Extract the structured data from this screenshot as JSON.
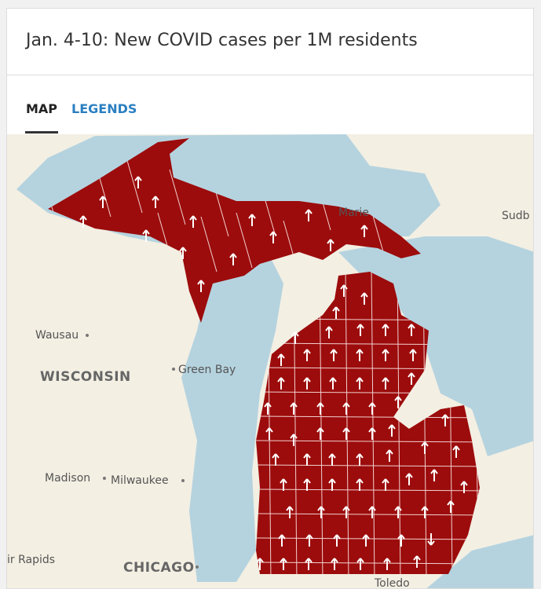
{
  "header": {
    "title": "Jan. 4-10: New COVID cases per 1M residents"
  },
  "tabs": [
    "MAP",
    "LEGENDS"
  ],
  "map": {
    "labels": [
      "Marie",
      "Sudb",
      "Wausau",
      "WISCONSIN",
      "Green Bay",
      "Madison",
      "Milwaukee",
      "ir Rapids",
      "CHICAGO",
      "Toledo"
    ]
  }
}
